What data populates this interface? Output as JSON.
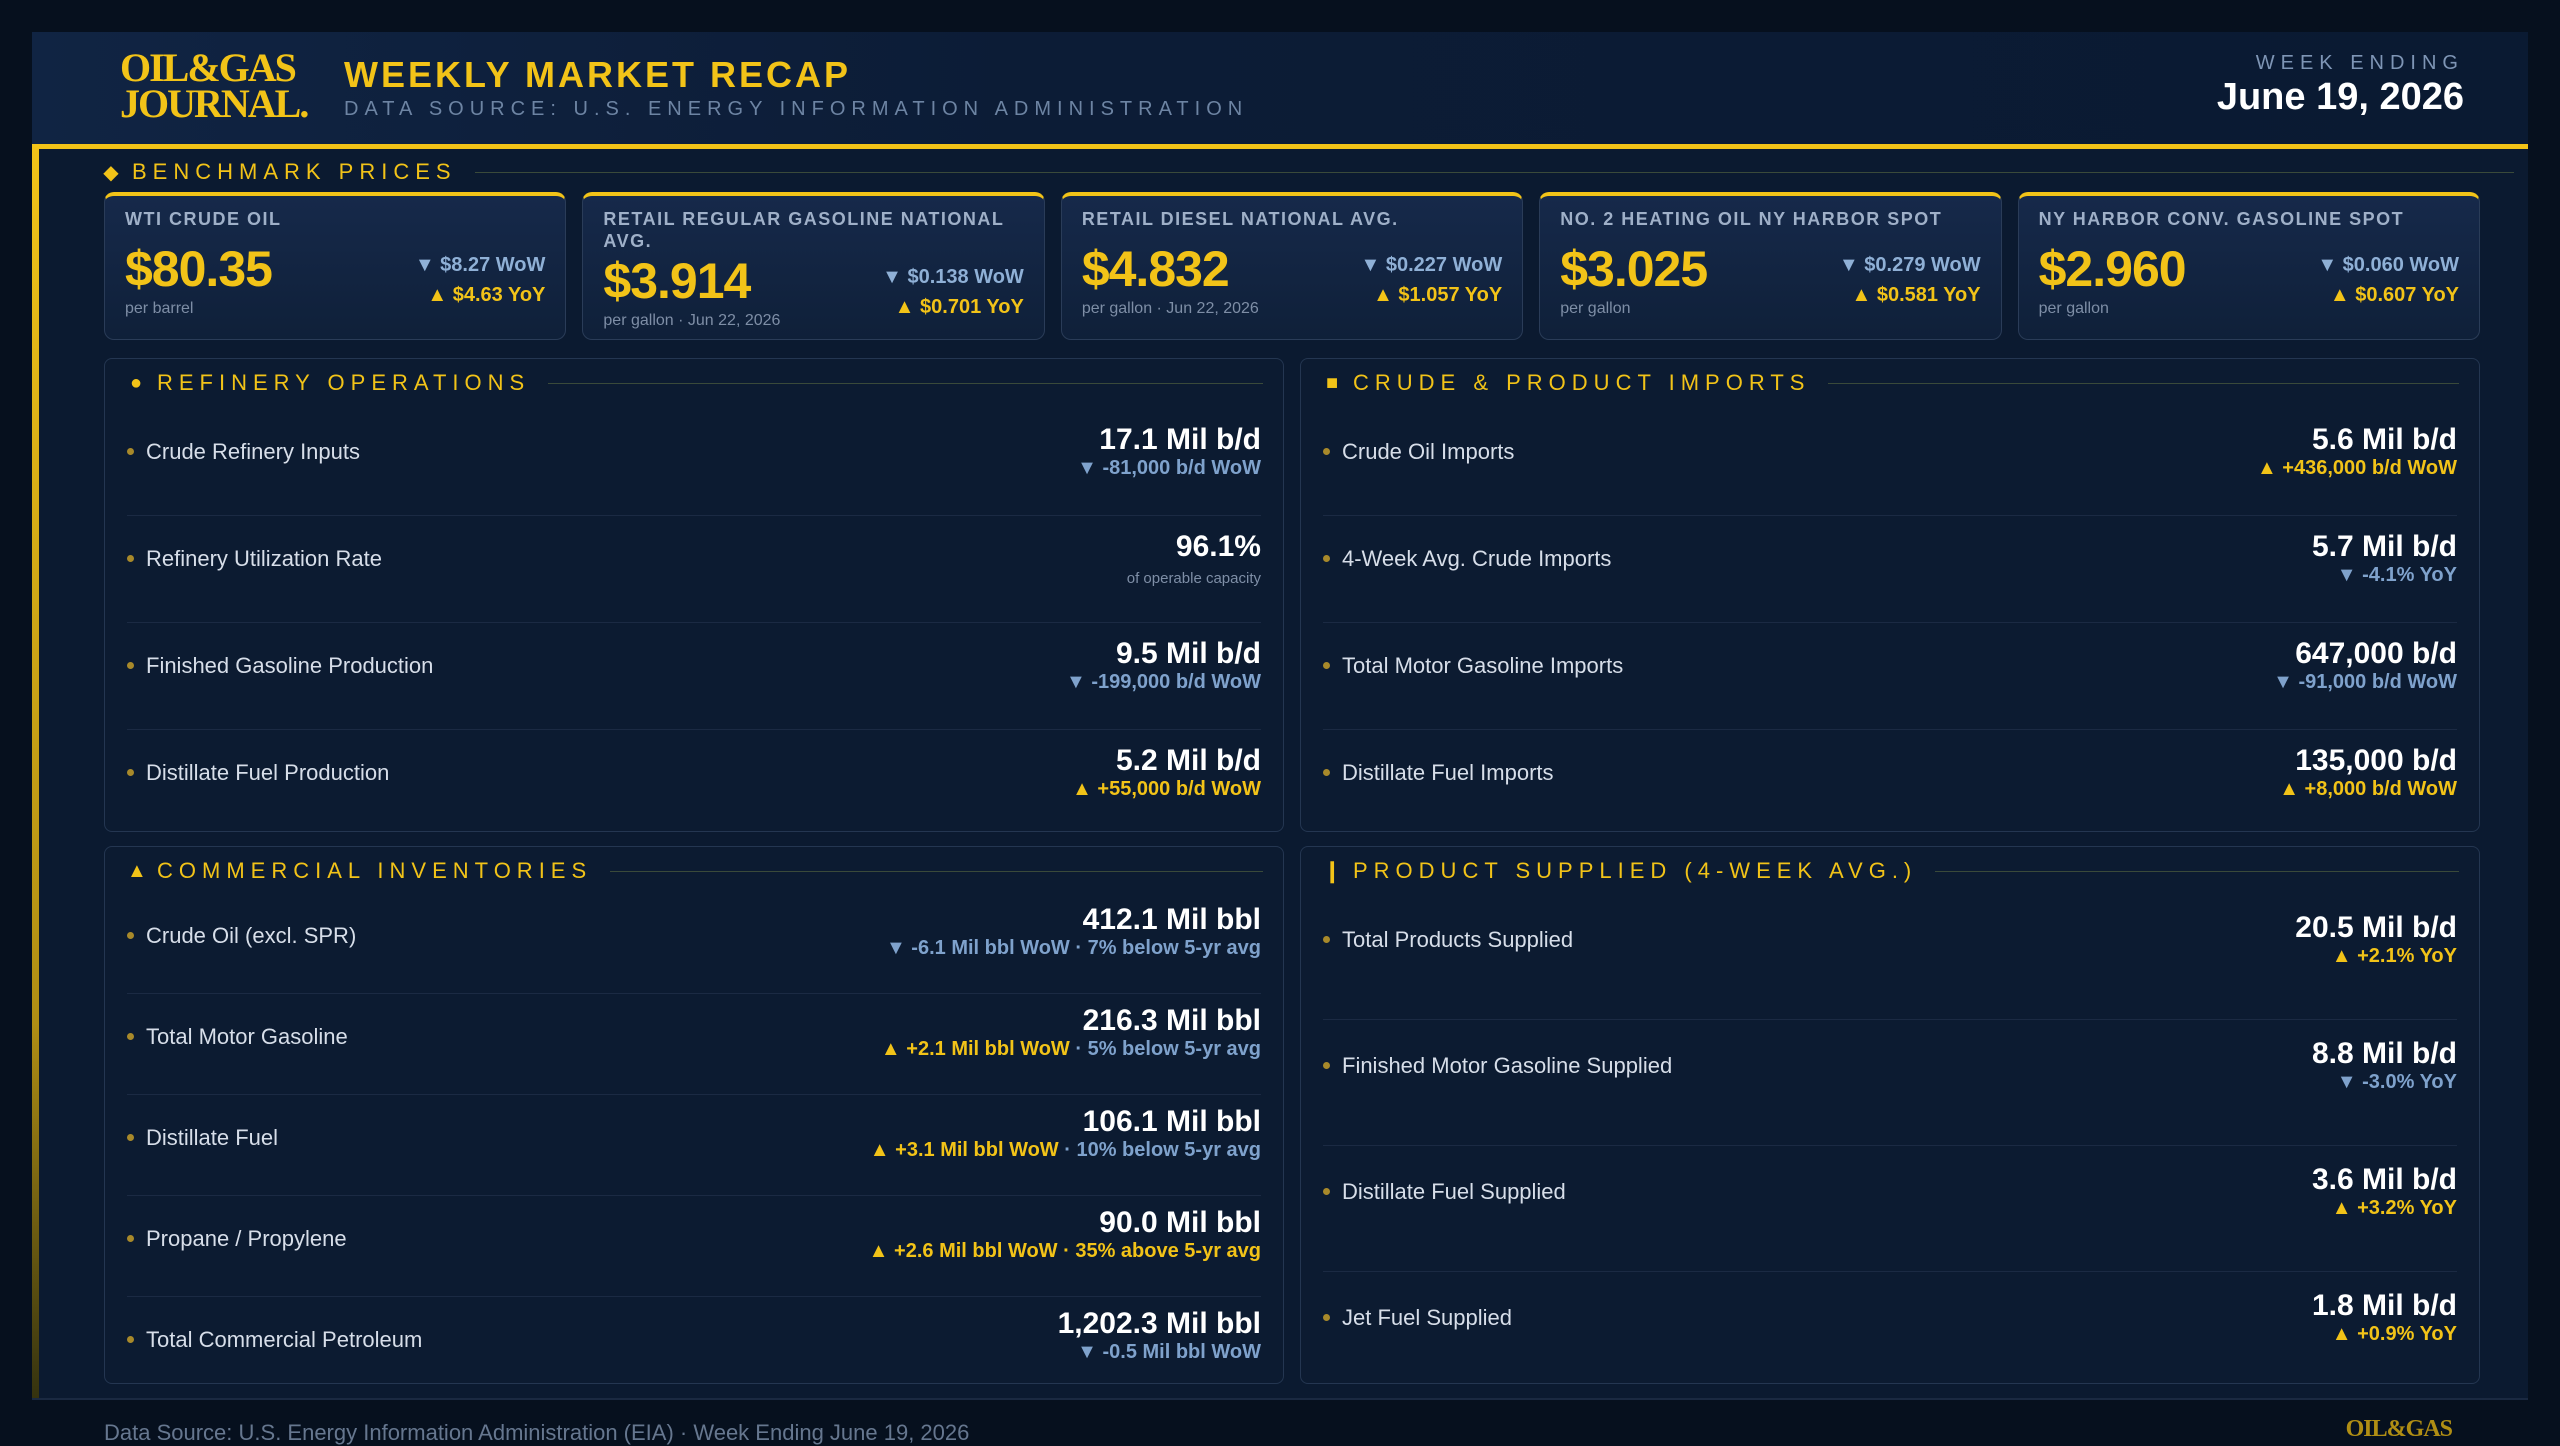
{
  "header": {
    "logo_line1": "OIL&GAS",
    "logo_line2": "JOURNAL.",
    "title": "WEEKLY MARKET RECAP",
    "subtitle": "DATA SOURCE: U.S. ENERGY INFORMATION ADMINISTRATION",
    "week_label": "WEEK ENDING",
    "week_date": "June 19, 2026"
  },
  "benchmark": {
    "heading": "BENCHMARK PRICES",
    "icon": "diamond-icon",
    "cards": [
      {
        "name": "WTI CRUDE OIL",
        "price": "$80.35",
        "unit": "per barrel",
        "wow": "▼ $8.27 WoW",
        "yoy": "▲ $4.63 YoY"
      },
      {
        "name": "RETAIL REGULAR GASOLINE NATIONAL AVG.",
        "price": "$3.914",
        "unit": "per gallon · Jun 22, 2026",
        "wow": "▼ $0.138 WoW",
        "yoy": "▲ $0.701 YoY"
      },
      {
        "name": "RETAIL DIESEL NATIONAL AVG.",
        "price": "$4.832",
        "unit": "per gallon · Jun 22, 2026",
        "wow": "▼ $0.227 WoW",
        "yoy": "▲ $1.057 YoY"
      },
      {
        "name": "NO. 2 HEATING OIL NY HARBOR SPOT",
        "price": "$3.025",
        "unit": "per gallon",
        "wow": "▼ $0.279 WoW",
        "yoy": "▲ $0.581 YoY"
      },
      {
        "name": "NY HARBOR CONV. GASOLINE SPOT",
        "price": "$2.960",
        "unit": "per gallon",
        "wow": "▼ $0.060 WoW",
        "yoy": "▲ $0.607 YoY"
      }
    ]
  },
  "refinery": {
    "heading": "REFINERY OPERATIONS",
    "icon": "circle-icon",
    "rows": [
      {
        "label": "Crude Refinery Inputs",
        "value": "17.1 Mil b/d",
        "sub": "▼ -81,000 b/d WoW",
        "dir": "down"
      },
      {
        "label": "Refinery Utilization Rate",
        "value": "96.1%",
        "sub": "of operable capacity",
        "dir": "small"
      },
      {
        "label": "Finished Gasoline Production",
        "value": "9.5 Mil b/d",
        "sub": "▼ -199,000 b/d WoW",
        "dir": "down"
      },
      {
        "label": "Distillate Fuel Production",
        "value": "5.2 Mil b/d",
        "sub": "▲ +55,000 b/d WoW",
        "dir": "up"
      }
    ]
  },
  "imports": {
    "heading": "CRUDE & PRODUCT IMPORTS",
    "icon": "square-icon",
    "rows": [
      {
        "label": "Crude Oil Imports",
        "value": "5.6 Mil b/d",
        "sub": "▲ +436,000 b/d WoW",
        "dir": "up"
      },
      {
        "label": "4-Week Avg. Crude Imports",
        "value": "5.7 Mil b/d",
        "sub": "▼ -4.1% YoY",
        "dir": "down"
      },
      {
        "label": "Total Motor Gasoline Imports",
        "value": "647,000 b/d",
        "sub": "▼ -91,000 b/d WoW",
        "dir": "down"
      },
      {
        "label": "Distillate Fuel Imports",
        "value": "135,000 b/d",
        "sub": "▲ +8,000 b/d WoW",
        "dir": "up"
      }
    ]
  },
  "inventories": {
    "heading": "COMMERCIAL INVENTORIES",
    "icon": "triangle-icon",
    "rows": [
      {
        "label": "Crude Oil (excl. SPR)",
        "value": "412.1 Mil bbl",
        "sub_a": "▼ -6.1 Mil bbl WoW",
        "sep": " · ",
        "sub_b": "7% below 5-yr avg",
        "dir": "down"
      },
      {
        "label": "Total Motor Gasoline",
        "value": "216.3 Mil bbl",
        "sub_a": "▲ +2.1 Mil bbl WoW",
        "sep": " · ",
        "sub_b": "5% below 5-yr avg",
        "dir": "up"
      },
      {
        "label": "Distillate Fuel",
        "value": "106.1 Mil bbl",
        "sub_a": "▲ +3.1 Mil bbl WoW",
        "sep": " · ",
        "sub_b": "10% below 5-yr avg",
        "dir": "up"
      },
      {
        "label": "Propane / Propylene",
        "value": "90.0 Mil bbl",
        "sub_a": "▲ +2.6 Mil bbl WoW",
        "sep": " · ",
        "sub_b": "35% above 5-yr avg",
        "dir": "up"
      },
      {
        "label": "Total Commercial Petroleum",
        "value": "1,202.3 Mil bbl",
        "sub_a": "▼ -0.5 Mil bbl WoW",
        "sep": "",
        "sub_b": "",
        "dir": "down"
      }
    ]
  },
  "supplied": {
    "heading": "PRODUCT SUPPLIED (4-WEEK AVG.)",
    "icon": "bar-icon",
    "rows": [
      {
        "label": "Total Products Supplied",
        "value": "20.5 Mil b/d",
        "sub": "▲ +2.1% YoY",
        "dir": "up"
      },
      {
        "label": "Finished Motor Gasoline Supplied",
        "value": "8.8 Mil b/d",
        "sub": "▼ -3.0% YoY",
        "dir": "down"
      },
      {
        "label": "Distillate Fuel Supplied",
        "value": "3.6 Mil b/d",
        "sub": "▲ +3.2% YoY",
        "dir": "up"
      },
      {
        "label": "Jet Fuel Supplied",
        "value": "1.8 Mil b/d",
        "sub": "▲ +0.9% YoY",
        "dir": "up"
      }
    ]
  },
  "footer": {
    "text": "Data Source: U.S. Energy Information Administration (EIA)  ·  Week Ending June 19, 2026",
    "logo": "OIL&GAS"
  },
  "colors": {
    "accent": "#f2c318",
    "down": "#7fa2cc",
    "background": "#0b1a30"
  }
}
